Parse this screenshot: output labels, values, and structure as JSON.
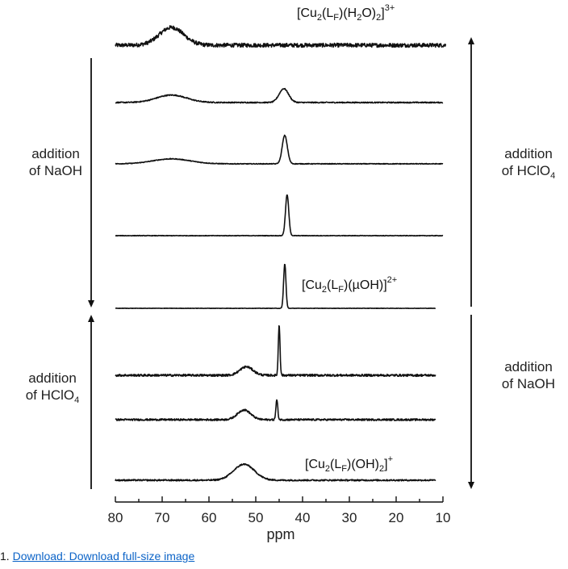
{
  "chart_data": {
    "type": "line",
    "xlabel": "ppm",
    "xlim": [
      80,
      10
    ],
    "x_ticks": [
      80,
      70,
      60,
      50,
      40,
      30,
      20,
      10
    ],
    "grid": false,
    "spectra": [
      {
        "peaks": [
          {
            "center": 68,
            "width": 2.6,
            "height": 1.0
          }
        ],
        "noise": 0.11
      },
      {
        "peaks": [
          {
            "center": 68,
            "width": 3.2,
            "height": 0.42
          },
          {
            "center": 44,
            "width": 1.0,
            "height": 0.78
          }
        ],
        "noise": 0.03
      },
      {
        "peaks": [
          {
            "center": 68,
            "width": 4.0,
            "height": 0.28
          },
          {
            "center": 43.8,
            "width": 0.55,
            "height": 1.6
          }
        ],
        "noise": 0.02
      },
      {
        "peaks": [
          {
            "center": 43.3,
            "width": 0.35,
            "height": 2.3
          }
        ],
        "noise": 0.015
      },
      {
        "peaks": [
          {
            "center": 43.8,
            "width": 0.25,
            "height": 2.5
          }
        ],
        "noise": 0.01
      },
      {
        "peaks": [
          {
            "center": 52,
            "width": 1.4,
            "height": 0.48
          },
          {
            "center": 45,
            "width": 0.18,
            "height": 2.85
          }
        ],
        "noise": 0.06
      },
      {
        "peaks": [
          {
            "center": 52.5,
            "width": 1.4,
            "height": 0.55
          },
          {
            "center": 45.5,
            "width": 0.2,
            "height": 1.12
          }
        ],
        "noise": 0.05
      },
      {
        "peaks": [
          {
            "center": 52.5,
            "width": 2.2,
            "height": 0.9
          }
        ],
        "noise": 0.04
      }
    ]
  },
  "labels": {
    "left_top": [
      "addition",
      "of NaOH"
    ],
    "left_bottom": [
      "addition",
      "of HClO",
      "4"
    ],
    "right_top": [
      "addition",
      "of HClO",
      "4"
    ],
    "right_bottom": [
      "addition",
      "of NaOH"
    ],
    "cap1": {
      "a": "[Cu",
      "b": "2",
      "c": "(L",
      "d": "F",
      "e": ")(H",
      "f": "2",
      "g": "O)",
      "h": "2",
      "i": "]",
      "j": "3+"
    },
    "cap2": {
      "a": "[Cu",
      "b": "2",
      "c": "(L",
      "d": "F",
      "e": ")(µOH)]",
      "f": "2+"
    },
    "cap3": {
      "a": "[Cu",
      "b": "2",
      "c": "(L",
      "d": "F",
      "e": ")(OH)",
      "f": "2",
      "g": "]",
      "h": "+"
    }
  },
  "footer": {
    "number": "1.",
    "link": "Download: Download full-size image"
  }
}
